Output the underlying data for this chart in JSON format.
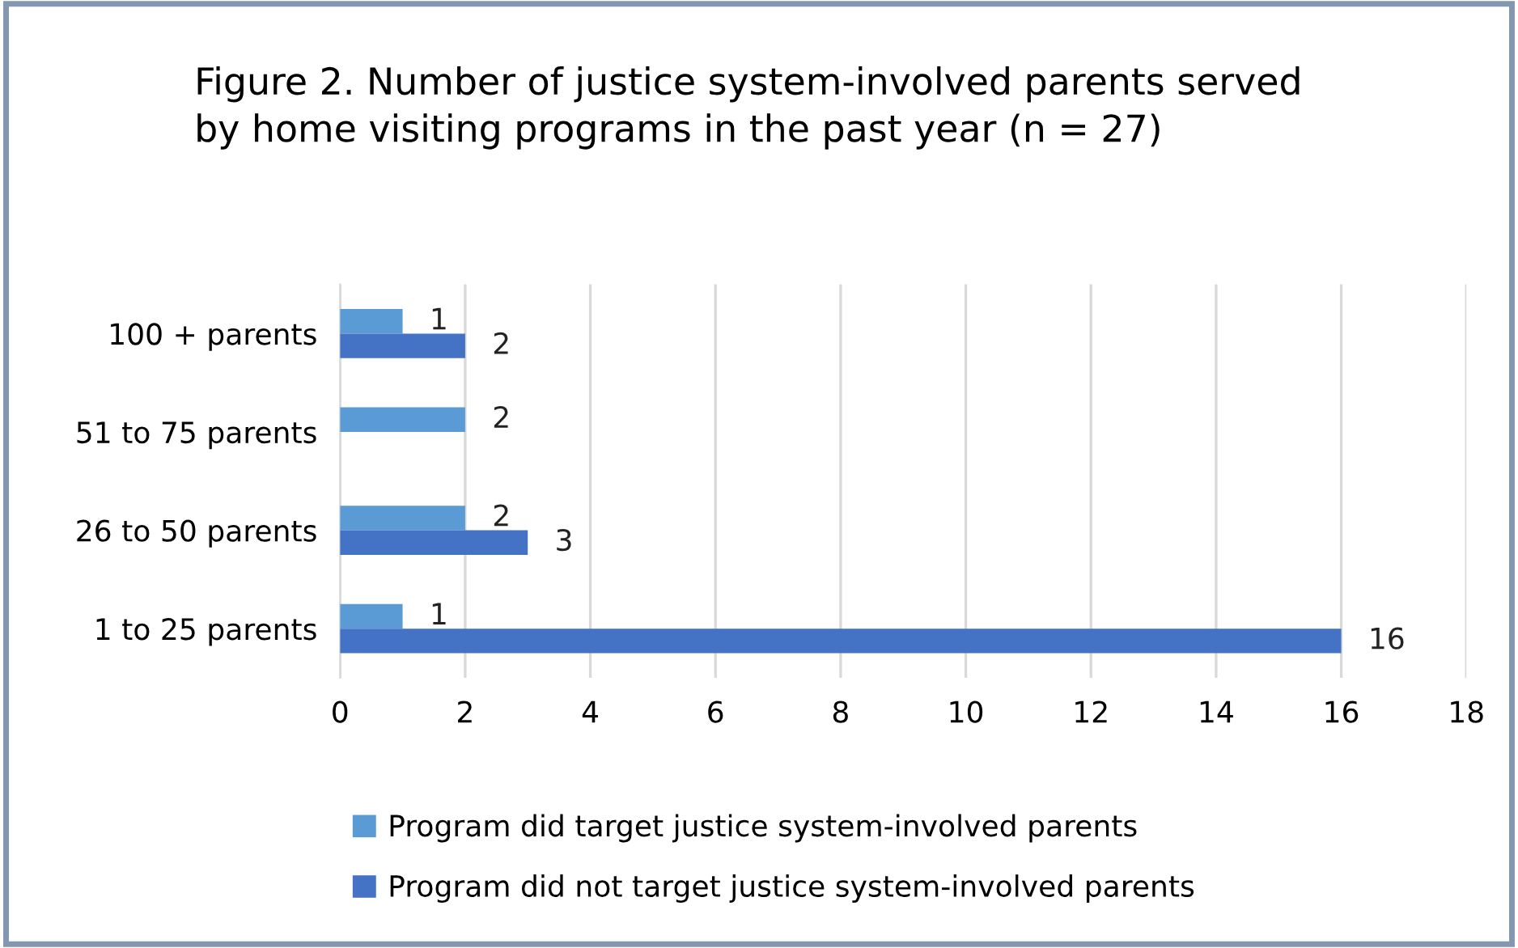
{
  "chart_data": {
    "type": "bar",
    "orientation": "horizontal",
    "title": "Figure 2. Number of justice system-involved parents served\nby home visiting programs in the past year (n = 27)",
    "categories": [
      "100 + parents",
      "51 to 75 parents",
      "26 to 50 parents",
      "1 to 25 parents"
    ],
    "series": [
      {
        "name": "Program did target justice system-involved parents",
        "color": "#5b9bd5",
        "values": [
          1,
          2,
          2,
          1
        ]
      },
      {
        "name": "Program did not target justice system-involved parents",
        "color": "#4472c4",
        "values": [
          2,
          null,
          3,
          16
        ]
      }
    ],
    "xlim": [
      0,
      18
    ],
    "xticks": [
      0,
      2,
      4,
      6,
      8,
      10,
      12,
      14,
      16,
      18
    ],
    "grid": "x",
    "legend": "bottom",
    "data_labels": true
  }
}
